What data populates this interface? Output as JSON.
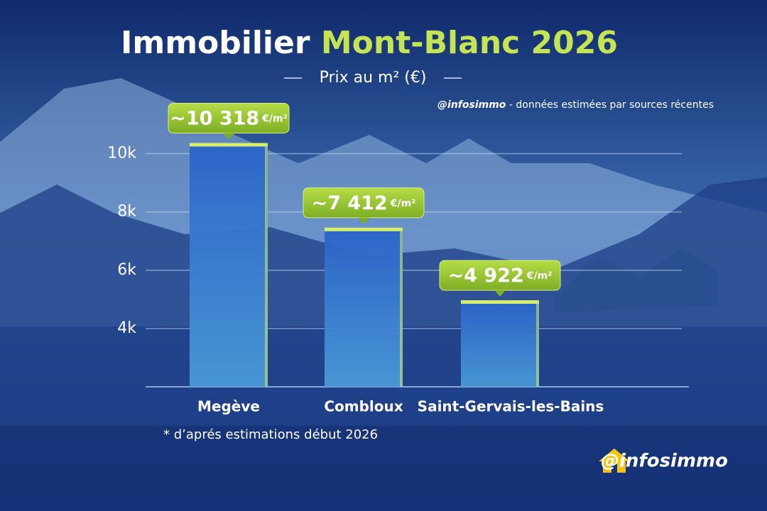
{
  "chart_data": {
    "type": "bar",
    "title": "Immobilier",
    "title_highlight": "Mont-Blanc 2026",
    "subtitle": "Prix au m² (€)",
    "source_handle": "@infosimmo",
    "source_text": "- données estimées par sources récentes",
    "categories": [
      "Megève",
      "Combloux",
      "Saint-Gervais-les-Bains"
    ],
    "values": [
      10318,
      7412,
      4922
    ],
    "value_labels": [
      "~10 318",
      "~7 412",
      "~4 922"
    ],
    "value_unit": "€/m²",
    "color": "#2f6fd0",
    "ylim": [
      2000,
      10500
    ],
    "yticks": [
      {
        "value": 4000,
        "label": "4k"
      },
      {
        "value": 6000,
        "label": "6k"
      },
      {
        "value": 8000,
        "label": "8k"
      },
      {
        "value": 10000,
        "label": "10k"
      }
    ],
    "grid": true,
    "footnote": "* d’aprés estimations début 2026",
    "brand": "@infosimmo"
  }
}
